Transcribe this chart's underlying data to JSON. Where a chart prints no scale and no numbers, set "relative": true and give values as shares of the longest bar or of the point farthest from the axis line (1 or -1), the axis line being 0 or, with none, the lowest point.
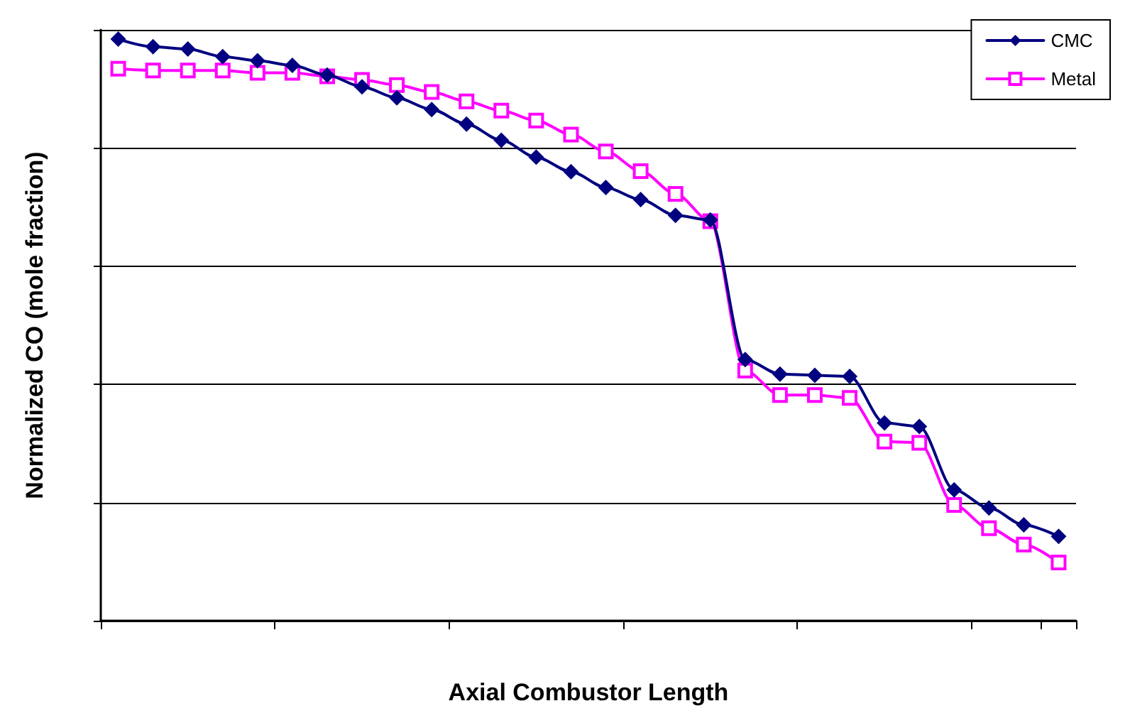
{
  "chart_data": {
    "type": "line",
    "relative": true,
    "xlabel": "Axial Combustor Length",
    "ylabel": "Normalized CO (mole fraction)",
    "categories": [
      null,
      null,
      null,
      null,
      null,
      null,
      null,
      null,
      null,
      null,
      null,
      null,
      null,
      null,
      null,
      null,
      null,
      null,
      null,
      null,
      null,
      null,
      null,
      null,
      null,
      null,
      null,
      null
    ],
    "series": [
      {
        "name": "CMC",
        "color": "#000080",
        "marker": "diamond",
        "values": [
          1,
          0.987,
          0.983,
          0.97,
          0.963,
          0.955,
          0.938,
          0.918,
          0.899,
          0.879,
          0.854,
          0.826,
          0.797,
          0.772,
          0.745,
          0.724,
          0.697,
          0.689,
          0.449,
          0.424,
          0.422,
          0.42,
          0.34,
          0.334,
          0.225,
          0.194,
          0.165,
          0.145
        ]
      },
      {
        "name": "Metal",
        "color": "#ff00ff",
        "marker": "square",
        "values": [
          0.949,
          0.946,
          0.946,
          0.946,
          0.942,
          0.942,
          0.936,
          0.93,
          0.921,
          0.909,
          0.893,
          0.877,
          0.86,
          0.836,
          0.807,
          0.773,
          0.734,
          0.687,
          0.43,
          0.388,
          0.388,
          0.383,
          0.308,
          0.306,
          0.199,
          0.159,
          0.131,
          0.1
        ]
      }
    ],
    "grid": "y",
    "legend": "top right",
    "line_style": "solid"
  }
}
